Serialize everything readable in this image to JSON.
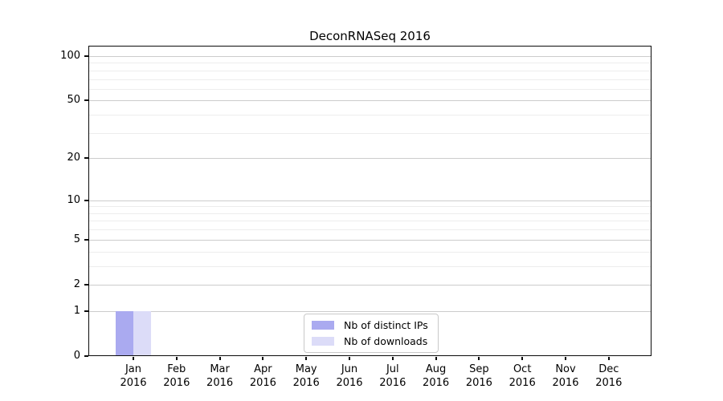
{
  "chart_data": {
    "type": "bar",
    "title": "DeconRNASeq 2016",
    "categories": [
      {
        "month": "Jan",
        "year": "2016"
      },
      {
        "month": "Feb",
        "year": "2016"
      },
      {
        "month": "Mar",
        "year": "2016"
      },
      {
        "month": "Apr",
        "year": "2016"
      },
      {
        "month": "May",
        "year": "2016"
      },
      {
        "month": "Jun",
        "year": "2016"
      },
      {
        "month": "Jul",
        "year": "2016"
      },
      {
        "month": "Aug",
        "year": "2016"
      },
      {
        "month": "Sep",
        "year": "2016"
      },
      {
        "month": "Oct",
        "year": "2016"
      },
      {
        "month": "Nov",
        "year": "2016"
      },
      {
        "month": "Dec",
        "year": "2016"
      }
    ],
    "series": [
      {
        "name": "Nb of distinct IPs",
        "color": "#aaaaf0",
        "values": [
          1,
          0,
          0,
          0,
          0,
          0,
          0,
          0,
          0,
          0,
          0,
          0
        ]
      },
      {
        "name": "Nb of downloads",
        "color": "#dcdcf8",
        "values": [
          1,
          0,
          0,
          0,
          0,
          0,
          0,
          0,
          0,
          0,
          0,
          0
        ]
      }
    ],
    "y_axis": {
      "scale": "log1p",
      "major_ticks": [
        0,
        1,
        2,
        5,
        10,
        20,
        50,
        100
      ],
      "minor_ticks": [
        3,
        4,
        6,
        7,
        8,
        9,
        30,
        40,
        60,
        70,
        80,
        90
      ],
      "max_labeled": 100
    },
    "legend_position": "lower-center",
    "grid": {
      "orientation": "horizontal",
      "major_color": "#cccccc",
      "minor_color": "#ededed"
    },
    "axis_color": "#0a0a0a",
    "text_color": "#000000"
  }
}
